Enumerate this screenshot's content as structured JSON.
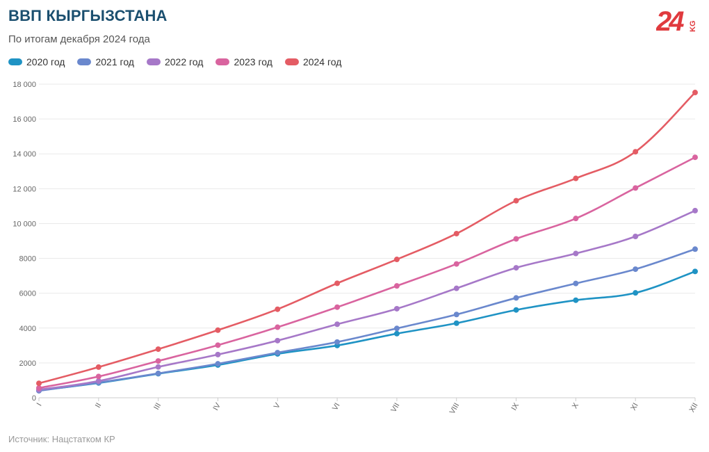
{
  "header": {
    "title": "ВВП КЫРГЫЗСТАНА",
    "subtitle": "По итогам декабря 2024 года",
    "logo_text": "24",
    "logo_suffix": "KG"
  },
  "footer": {
    "source": "Источник: Нацстатком КР"
  },
  "colors": {
    "2020": "#1f93c4",
    "2021": "#6a88cd",
    "2022": "#a678c8",
    "2023": "#d9649f",
    "2024": "#e45c64",
    "logo": "#e03a3e"
  },
  "chart_data": {
    "type": "line",
    "title": "ВВП КЫРГЫЗСТАНА",
    "subtitle": "По итогам декабря 2024 года",
    "categories": [
      "I",
      "II",
      "III",
      "IV",
      "V",
      "VI",
      "VII",
      "VIII",
      "IX",
      "X",
      "XI",
      "XII"
    ],
    "ylim": [
      0,
      18000
    ],
    "yticks": [
      0,
      2000,
      4000,
      6000,
      8000,
      10000,
      12000,
      14000,
      16000,
      18000
    ],
    "ytick_labels": [
      "0",
      "2000",
      "4000",
      "6000",
      "8000",
      "10 000",
      "12 000",
      "14 000",
      "16 000",
      "18 000"
    ],
    "xlabel": "",
    "ylabel": "",
    "grid": true,
    "legend_position": "top-left",
    "series": [
      {
        "name": "2020 год",
        "color": "#1f93c4",
        "values": [
          420,
          850,
          1380,
          1880,
          2520,
          3000,
          3680,
          4280,
          5040,
          5600,
          6020,
          7250
        ]
      },
      {
        "name": "2021 год",
        "color": "#6a88cd",
        "values": [
          400,
          870,
          1400,
          1950,
          2590,
          3200,
          3980,
          4780,
          5730,
          6560,
          7380,
          8530
        ]
      },
      {
        "name": "2022 год",
        "color": "#a678c8",
        "values": [
          460,
          960,
          1770,
          2480,
          3280,
          4220,
          5110,
          6280,
          7460,
          8280,
          9260,
          10740
        ]
      },
      {
        "name": "2023 год",
        "color": "#d9649f",
        "values": [
          560,
          1220,
          2110,
          3020,
          4050,
          5200,
          6420,
          7680,
          9120,
          10290,
          12040,
          13800
        ]
      },
      {
        "name": "2024 год",
        "color": "#e45c64",
        "values": [
          830,
          1760,
          2790,
          3880,
          5080,
          6570,
          7940,
          9420,
          11310,
          12590,
          14120,
          17520
        ]
      }
    ]
  }
}
